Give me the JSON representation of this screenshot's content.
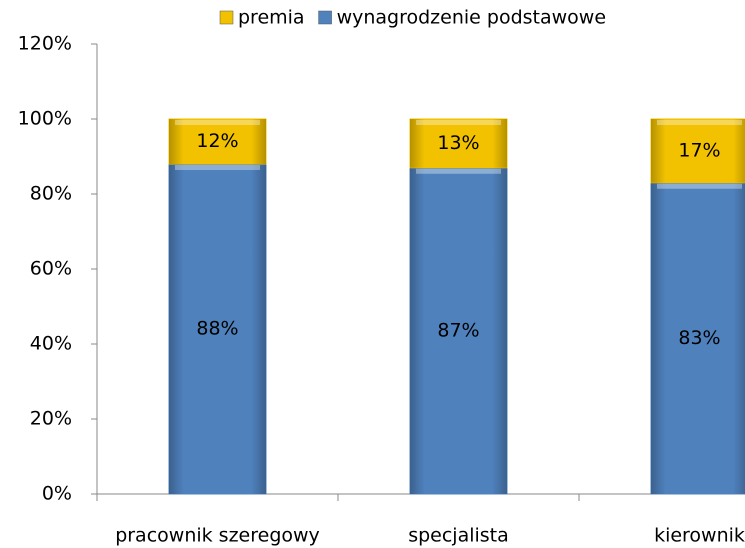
{
  "chart_data": {
    "type": "stacked_bar",
    "categories": [
      "pracownik szeregowy",
      "specjalista",
      "kierownik"
    ],
    "series": [
      {
        "name": "wynagrodzenie podstawowe",
        "color": "#4f81bd",
        "values": [
          88,
          87,
          83
        ],
        "value_labels": [
          "88%",
          "87%",
          "83%"
        ]
      },
      {
        "name": "premia",
        "color": "#f2c200",
        "values": [
          12,
          13,
          17
        ],
        "value_labels": [
          "12%",
          "13%",
          "17%"
        ]
      }
    ],
    "ylim": [
      0,
      120
    ],
    "yticks": [
      {
        "value": 0,
        "label": "0%"
      },
      {
        "value": 20,
        "label": "20%"
      },
      {
        "value": 40,
        "label": "40%"
      },
      {
        "value": 60,
        "label": "60%"
      },
      {
        "value": 80,
        "label": "80%"
      },
      {
        "value": 100,
        "label": "100%"
      },
      {
        "value": 120,
        "label": "120%"
      }
    ],
    "legend": "top"
  }
}
